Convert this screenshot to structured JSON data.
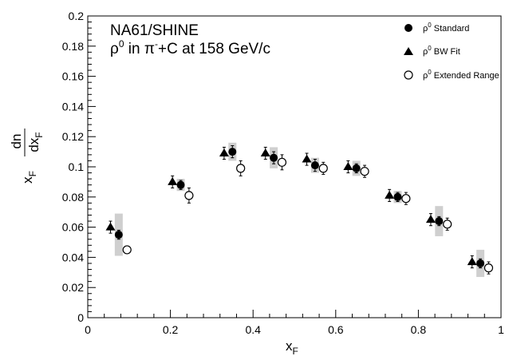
{
  "chart_data": {
    "type": "scatter",
    "title_lines": [
      {
        "text": "NA61/SHINE"
      },
      {
        "pre": "ρ",
        "sup": "0",
        "post": " in π",
        "sup2": "-",
        "post2": "+C at 158 GeV/c"
      }
    ],
    "xlabel": "x",
    "xlabel_sub": "F",
    "ylabel": {
      "num": "dn",
      "den_main": "dx",
      "den_sub": "F",
      "prefix": "x",
      "prefix_sub": "F"
    },
    "xlim": [
      0,
      1.0
    ],
    "ylim": [
      0,
      0.2
    ],
    "x_ticks": [
      "0",
      "0.2",
      "0.4",
      "0.6",
      "0.8",
      "1"
    ],
    "y_ticks": [
      "0",
      "0.02",
      "0.04",
      "0.06",
      "0.08",
      "0.1",
      "0.12",
      "0.14",
      "0.16",
      "0.18",
      "0.2"
    ],
    "legend_position": "top-right",
    "series": [
      {
        "name": "ρ⁰ Standard",
        "label_base": "ρ",
        "label_sup": "0",
        "label_rest": " Standard",
        "marker": "filled-circle",
        "x": [
          0.075,
          0.225,
          0.35,
          0.45,
          0.55,
          0.65,
          0.75,
          0.85,
          0.95
        ],
        "y": [
          0.055,
          0.088,
          0.11,
          0.106,
          0.101,
          0.099,
          0.08,
          0.064,
          0.036
        ],
        "yerr": [
          0.003,
          0.003,
          0.004,
          0.004,
          0.004,
          0.003,
          0.003,
          0.003,
          0.003
        ],
        "sys": [
          0.014,
          0.004,
          0.006,
          0.007,
          0.005,
          0.005,
          0.004,
          0.01,
          0.009
        ]
      },
      {
        "name": "ρ⁰ BW Fit",
        "label_base": "ρ",
        "label_sup": "0",
        "label_rest": " BW Fit",
        "marker": "filled-triangle",
        "x": [
          0.055,
          0.205,
          0.33,
          0.43,
          0.53,
          0.63,
          0.73,
          0.83,
          0.93
        ],
        "y": [
          0.06,
          0.09,
          0.109,
          0.109,
          0.105,
          0.1,
          0.081,
          0.065,
          0.037
        ],
        "yerr": [
          0.004,
          0.004,
          0.004,
          0.004,
          0.004,
          0.004,
          0.004,
          0.004,
          0.004
        ]
      },
      {
        "name": "ρ⁰ Extended Range",
        "label_base": "ρ",
        "label_sup": "0",
        "label_rest": " Extended Range",
        "marker": "open-circle",
        "x": [
          0.095,
          0.245,
          0.37,
          0.47,
          0.57,
          0.67,
          0.77,
          0.87,
          0.97
        ],
        "y": [
          0.045,
          0.081,
          0.099,
          0.103,
          0.099,
          0.097,
          0.079,
          0.062,
          0.033
        ],
        "yerr": [
          0.001,
          0.005,
          0.005,
          0.005,
          0.004,
          0.004,
          0.004,
          0.004,
          0.004
        ]
      }
    ]
  }
}
